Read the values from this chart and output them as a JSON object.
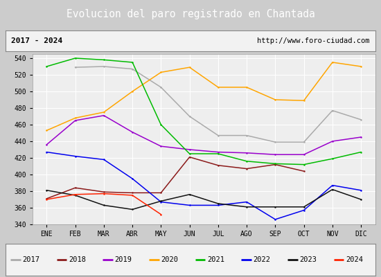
{
  "title": "Evolucion del paro registrado en Chantada",
  "subtitle_left": "2017 - 2024",
  "subtitle_right": "http://www.foro-ciudad.com",
  "months": [
    "ENE",
    "FEB",
    "MAR",
    "ABR",
    "MAY",
    "JUN",
    "JUL",
    "AGO",
    "SEP",
    "OCT",
    "NOV",
    "DIC"
  ],
  "series": {
    "2017": {
      "color": "#aaaaaa",
      "data": [
        null,
        529,
        530,
        527,
        505,
        470,
        447,
        447,
        439,
        439,
        477,
        466
      ]
    },
    "2018": {
      "color": "#8b1a1a",
      "data": [
        371,
        384,
        379,
        378,
        378,
        421,
        411,
        407,
        412,
        404,
        null,
        null
      ]
    },
    "2019": {
      "color": "#9900cc",
      "data": [
        436,
        465,
        471,
        451,
        434,
        430,
        427,
        426,
        424,
        424,
        440,
        445
      ]
    },
    "2020": {
      "color": "#ffa500",
      "data": [
        453,
        468,
        475,
        500,
        523,
        529,
        505,
        505,
        490,
        489,
        535,
        530
      ]
    },
    "2021": {
      "color": "#00bb00",
      "data": [
        530,
        540,
        538,
        535,
        460,
        425,
        425,
        416,
        413,
        412,
        419,
        427
      ]
    },
    "2022": {
      "color": "#0000ee",
      "data": [
        427,
        422,
        418,
        395,
        367,
        363,
        363,
        367,
        346,
        357,
        387,
        381
      ]
    },
    "2023": {
      "color": "#111111",
      "data": [
        381,
        375,
        363,
        358,
        368,
        376,
        365,
        361,
        361,
        361,
        382,
        370
      ]
    },
    "2024": {
      "color": "#ff2200",
      "data": [
        370,
        376,
        377,
        375,
        352,
        null,
        null,
        null,
        null,
        null,
        null,
        null
      ]
    }
  },
  "ylim": [
    340,
    545
  ],
  "yticks": [
    340,
    360,
    380,
    400,
    420,
    440,
    460,
    480,
    500,
    520,
    540
  ],
  "title_bg": "#4472c4",
  "title_color": "#ffffff",
  "plot_bg": "#eeeeee",
  "outer_bg": "#cccccc",
  "grid_color": "#ffffff",
  "legend_fontsize": 7.5,
  "title_fontsize": 10.5,
  "subtitle_fontsize": 8,
  "tick_fontsize": 7
}
